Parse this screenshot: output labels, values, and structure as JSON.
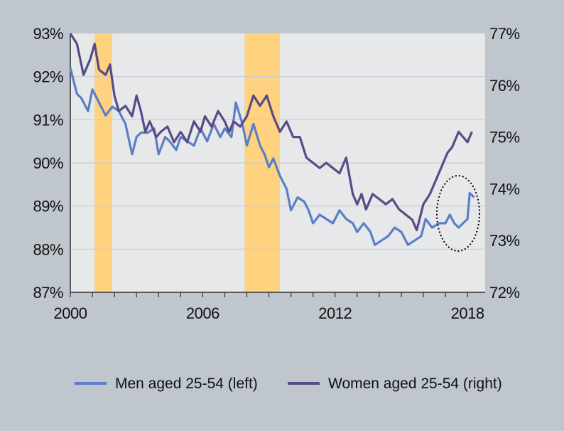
{
  "chart_data": {
    "type": "line",
    "x_ticks": [
      "2000",
      "2006",
      "2012",
      "2018"
    ],
    "xlim": [
      2000,
      2018.8
    ],
    "y_left": {
      "ylim": [
        87,
        93
      ],
      "ticks": [
        "87%",
        "88%",
        "89%",
        "90%",
        "91%",
        "92%",
        "93%"
      ]
    },
    "y_right": {
      "ylim": [
        72,
        77
      ],
      "ticks": [
        "72%",
        "73%",
        "74%",
        "75%",
        "76%",
        "77%"
      ]
    },
    "recessions": [
      [
        2001.1,
        2001.9
      ],
      [
        2007.9,
        2009.5
      ]
    ],
    "grid": true,
    "legend_position": "bottom",
    "series": [
      {
        "name": "Men aged 25-54 (left)",
        "axis": "left",
        "color": "#5b7fc6",
        "x": [
          2000.0,
          2000.3,
          2000.5,
          2000.8,
          2001.0,
          2001.3,
          2001.6,
          2001.9,
          2002.2,
          2002.5,
          2002.8,
          2003.0,
          2003.2,
          2003.5,
          2003.8,
          2004.0,
          2004.3,
          2004.5,
          2004.8,
          2005.0,
          2005.3,
          2005.6,
          2005.9,
          2006.2,
          2006.5,
          2006.8,
          2007.0,
          2007.3,
          2007.5,
          2007.8,
          2008.0,
          2008.3,
          2008.6,
          2008.8,
          2009.0,
          2009.2,
          2009.5,
          2009.8,
          2010.0,
          2010.3,
          2010.6,
          2010.8,
          2011.0,
          2011.3,
          2011.6,
          2011.9,
          2012.2,
          2012.5,
          2012.8,
          2013.0,
          2013.3,
          2013.6,
          2013.8,
          2014.1,
          2014.4,
          2014.7,
          2015.0,
          2015.3,
          2015.6,
          2015.9,
          2016.1,
          2016.4,
          2016.7,
          2017.0,
          2017.2,
          2017.4,
          2017.6,
          2017.8,
          2018.0,
          2018.1,
          2018.3
        ],
        "y": [
          92.2,
          91.6,
          91.5,
          91.2,
          91.7,
          91.4,
          91.1,
          91.3,
          91.2,
          90.9,
          90.2,
          90.6,
          90.7,
          90.7,
          90.8,
          90.2,
          90.6,
          90.5,
          90.3,
          90.6,
          90.5,
          90.4,
          90.8,
          90.5,
          90.9,
          90.6,
          90.8,
          90.6,
          91.4,
          90.9,
          90.4,
          90.9,
          90.4,
          90.2,
          89.9,
          90.1,
          89.7,
          89.4,
          88.9,
          89.2,
          89.1,
          88.9,
          88.6,
          88.8,
          88.7,
          88.6,
          88.9,
          88.7,
          88.6,
          88.4,
          88.6,
          88.4,
          88.1,
          88.2,
          88.3,
          88.5,
          88.4,
          88.1,
          88.2,
          88.3,
          88.7,
          88.5,
          88.6,
          88.6,
          88.8,
          88.6,
          88.5,
          88.6,
          88.7,
          89.3,
          89.2
        ]
      },
      {
        "name": "Women aged 25-54 (right)",
        "axis": "right",
        "color": "#5a4a85",
        "x": [
          2000.0,
          2000.3,
          2000.6,
          2000.9,
          2001.1,
          2001.3,
          2001.6,
          2001.8,
          2002.0,
          2002.2,
          2002.5,
          2002.8,
          2003.0,
          2003.2,
          2003.4,
          2003.6,
          2003.9,
          2004.1,
          2004.4,
          2004.7,
          2005.0,
          2005.3,
          2005.6,
          2005.9,
          2006.1,
          2006.4,
          2006.7,
          2007.0,
          2007.2,
          2007.4,
          2007.7,
          2008.0,
          2008.3,
          2008.6,
          2008.9,
          2009.2,
          2009.5,
          2009.8,
          2010.1,
          2010.4,
          2010.7,
          2011.0,
          2011.3,
          2011.6,
          2011.9,
          2012.2,
          2012.5,
          2012.8,
          2013.0,
          2013.2,
          2013.4,
          2013.7,
          2014.0,
          2014.3,
          2014.6,
          2014.9,
          2015.2,
          2015.5,
          2015.7,
          2016.0,
          2016.3,
          2016.6,
          2016.9,
          2017.1,
          2017.3,
          2017.6,
          2017.8,
          2018.0,
          2018.2
        ],
        "y": [
          77.0,
          76.8,
          76.2,
          76.5,
          76.8,
          76.3,
          76.2,
          76.4,
          75.8,
          75.5,
          75.6,
          75.4,
          75.8,
          75.5,
          75.1,
          75.3,
          75.0,
          75.1,
          75.2,
          74.9,
          75.1,
          74.9,
          75.3,
          75.1,
          75.4,
          75.2,
          75.5,
          75.3,
          75.1,
          75.3,
          75.2,
          75.4,
          75.8,
          75.6,
          75.8,
          75.4,
          75.1,
          75.3,
          75.0,
          75.0,
          74.6,
          74.5,
          74.4,
          74.5,
          74.4,
          74.3,
          74.6,
          73.9,
          73.7,
          73.9,
          73.6,
          73.9,
          73.8,
          73.7,
          73.8,
          73.6,
          73.5,
          73.4,
          73.2,
          73.7,
          73.9,
          74.2,
          74.5,
          74.7,
          74.8,
          75.1,
          75.0,
          74.9,
          75.1
        ]
      }
    ],
    "annotation": "dotted-ellipse"
  },
  "legend": {
    "men_label": "Men aged 25-54 (left)",
    "women_label": "Women aged 25-54 (right)"
  }
}
